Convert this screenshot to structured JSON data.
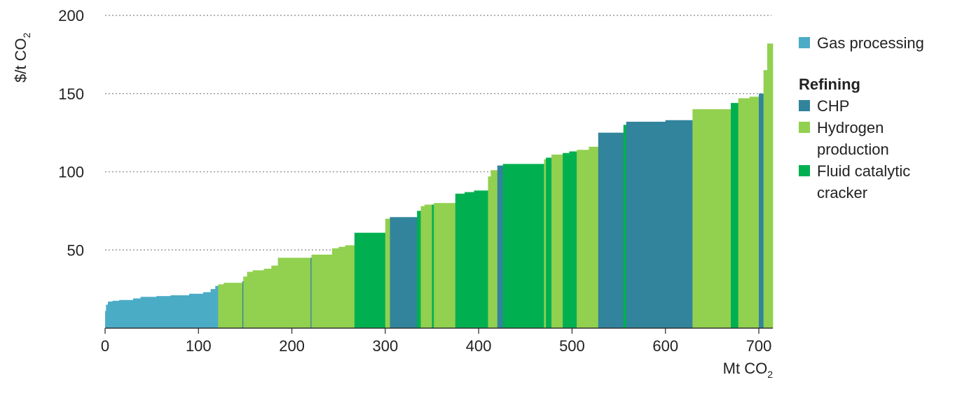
{
  "chart_data": {
    "type": "bar",
    "subtype": "marginal-abatement-cost-curve",
    "y_axis": {
      "label_main": "$/t  CO",
      "label_sub": "2",
      "ylim": [
        0,
        200
      ],
      "ticks": [
        50,
        100,
        150,
        200
      ],
      "tick_labels": [
        "50",
        "100",
        "150",
        "200"
      ]
    },
    "x_axis": {
      "label_main": "Mt CO",
      "label_sub": "2",
      "xlim": [
        0,
        715
      ],
      "ticks": [
        0,
        100,
        200,
        300,
        400,
        500,
        600,
        700
      ],
      "tick_labels": [
        "0",
        "100",
        "200",
        "300",
        "400",
        "500",
        "600",
        "700"
      ]
    },
    "grid": "horizontal-dotted",
    "legend_position": "right",
    "legend": {
      "items": [
        {
          "key": "gas",
          "label": "Gas processing"
        }
      ],
      "group_title": "Refining",
      "group_items": [
        {
          "key": "chp",
          "label": "CHP"
        },
        {
          "key": "hydrogen",
          "label": "Hydrogen production"
        },
        {
          "key": "fcc",
          "label": "Fluid catalytic cracker"
        }
      ]
    },
    "colors": {
      "gas": "#4BACC6",
      "chp": "#31849B",
      "hydrogen": "#92D050",
      "fcc": "#00B050",
      "grid": "#9a9a9a",
      "axis": "#333333"
    },
    "segments": [
      {
        "x0": 0,
        "x1": 1,
        "y": 11,
        "cat": "gas"
      },
      {
        "x0": 1,
        "x1": 3,
        "y": 15,
        "cat": "gas"
      },
      {
        "x0": 3,
        "x1": 8,
        "y": 17,
        "cat": "gas"
      },
      {
        "x0": 8,
        "x1": 15,
        "y": 17.5,
        "cat": "gas"
      },
      {
        "x0": 15,
        "x1": 30,
        "y": 18,
        "cat": "gas"
      },
      {
        "x0": 30,
        "x1": 38,
        "y": 19,
        "cat": "gas"
      },
      {
        "x0": 38,
        "x1": 55,
        "y": 20,
        "cat": "gas"
      },
      {
        "x0": 55,
        "x1": 70,
        "y": 20.5,
        "cat": "gas"
      },
      {
        "x0": 70,
        "x1": 90,
        "y": 21,
        "cat": "gas"
      },
      {
        "x0": 90,
        "x1": 105,
        "y": 22,
        "cat": "gas"
      },
      {
        "x0": 105,
        "x1": 113,
        "y": 23,
        "cat": "gas"
      },
      {
        "x0": 113,
        "x1": 118,
        "y": 25,
        "cat": "gas"
      },
      {
        "x0": 118,
        "x1": 121,
        "y": 27,
        "cat": "gas"
      },
      {
        "x0": 121,
        "x1": 127,
        "y": 28,
        "cat": "hydrogen"
      },
      {
        "x0": 127,
        "x1": 147,
        "y": 29,
        "cat": "hydrogen"
      },
      {
        "x0": 147,
        "x1": 148,
        "y": 30,
        "cat": "chp"
      },
      {
        "x0": 148,
        "x1": 152,
        "y": 33,
        "cat": "hydrogen"
      },
      {
        "x0": 152,
        "x1": 158,
        "y": 36,
        "cat": "hydrogen"
      },
      {
        "x0": 158,
        "x1": 170,
        "y": 37,
        "cat": "hydrogen"
      },
      {
        "x0": 170,
        "x1": 178,
        "y": 38,
        "cat": "hydrogen"
      },
      {
        "x0": 178,
        "x1": 185,
        "y": 40,
        "cat": "hydrogen"
      },
      {
        "x0": 185,
        "x1": 220,
        "y": 45,
        "cat": "hydrogen"
      },
      {
        "x0": 220,
        "x1": 221,
        "y": 45,
        "cat": "chp"
      },
      {
        "x0": 221,
        "x1": 243,
        "y": 47,
        "cat": "hydrogen"
      },
      {
        "x0": 243,
        "x1": 250,
        "y": 51,
        "cat": "hydrogen"
      },
      {
        "x0": 250,
        "x1": 257,
        "y": 52,
        "cat": "hydrogen"
      },
      {
        "x0": 257,
        "x1": 267,
        "y": 53,
        "cat": "hydrogen"
      },
      {
        "x0": 267,
        "x1": 300,
        "y": 61,
        "cat": "fcc"
      },
      {
        "x0": 300,
        "x1": 305,
        "y": 70,
        "cat": "hydrogen"
      },
      {
        "x0": 305,
        "x1": 334,
        "y": 71,
        "cat": "chp"
      },
      {
        "x0": 334,
        "x1": 338,
        "y": 75,
        "cat": "fcc"
      },
      {
        "x0": 338,
        "x1": 342,
        "y": 78,
        "cat": "hydrogen"
      },
      {
        "x0": 342,
        "x1": 350,
        "y": 79,
        "cat": "hydrogen"
      },
      {
        "x0": 350,
        "x1": 352,
        "y": 79,
        "cat": "fcc"
      },
      {
        "x0": 352,
        "x1": 375,
        "y": 80,
        "cat": "hydrogen"
      },
      {
        "x0": 375,
        "x1": 385,
        "y": 86,
        "cat": "fcc"
      },
      {
        "x0": 385,
        "x1": 395,
        "y": 87,
        "cat": "fcc"
      },
      {
        "x0": 395,
        "x1": 410,
        "y": 88,
        "cat": "fcc"
      },
      {
        "x0": 410,
        "x1": 413,
        "y": 97,
        "cat": "hydrogen"
      },
      {
        "x0": 413,
        "x1": 420,
        "y": 101,
        "cat": "hydrogen"
      },
      {
        "x0": 420,
        "x1": 426,
        "y": 104,
        "cat": "chp"
      },
      {
        "x0": 426,
        "x1": 470,
        "y": 105,
        "cat": "fcc"
      },
      {
        "x0": 470,
        "x1": 472,
        "y": 108,
        "cat": "hydrogen"
      },
      {
        "x0": 472,
        "x1": 478,
        "y": 109,
        "cat": "fcc"
      },
      {
        "x0": 478,
        "x1": 490,
        "y": 111,
        "cat": "hydrogen"
      },
      {
        "x0": 490,
        "x1": 497,
        "y": 112,
        "cat": "fcc"
      },
      {
        "x0": 497,
        "x1": 505,
        "y": 113,
        "cat": "fcc"
      },
      {
        "x0": 505,
        "x1": 518,
        "y": 114,
        "cat": "hydrogen"
      },
      {
        "x0": 518,
        "x1": 528,
        "y": 116,
        "cat": "hydrogen"
      },
      {
        "x0": 528,
        "x1": 555,
        "y": 125,
        "cat": "chp"
      },
      {
        "x0": 555,
        "x1": 558,
        "y": 130,
        "cat": "fcc"
      },
      {
        "x0": 558,
        "x1": 580,
        "y": 132,
        "cat": "chp"
      },
      {
        "x0": 580,
        "x1": 600,
        "y": 132,
        "cat": "chp"
      },
      {
        "x0": 600,
        "x1": 629,
        "y": 133,
        "cat": "chp"
      },
      {
        "x0": 629,
        "x1": 670,
        "y": 140,
        "cat": "hydrogen"
      },
      {
        "x0": 670,
        "x1": 678,
        "y": 144,
        "cat": "fcc"
      },
      {
        "x0": 678,
        "x1": 690,
        "y": 147,
        "cat": "hydrogen"
      },
      {
        "x0": 690,
        "x1": 700,
        "y": 148,
        "cat": "hydrogen"
      },
      {
        "x0": 700,
        "x1": 705,
        "y": 150,
        "cat": "chp"
      },
      {
        "x0": 705,
        "x1": 709,
        "y": 165,
        "cat": "hydrogen"
      },
      {
        "x0": 709,
        "x1": 715,
        "y": 182,
        "cat": "hydrogen"
      }
    ]
  }
}
